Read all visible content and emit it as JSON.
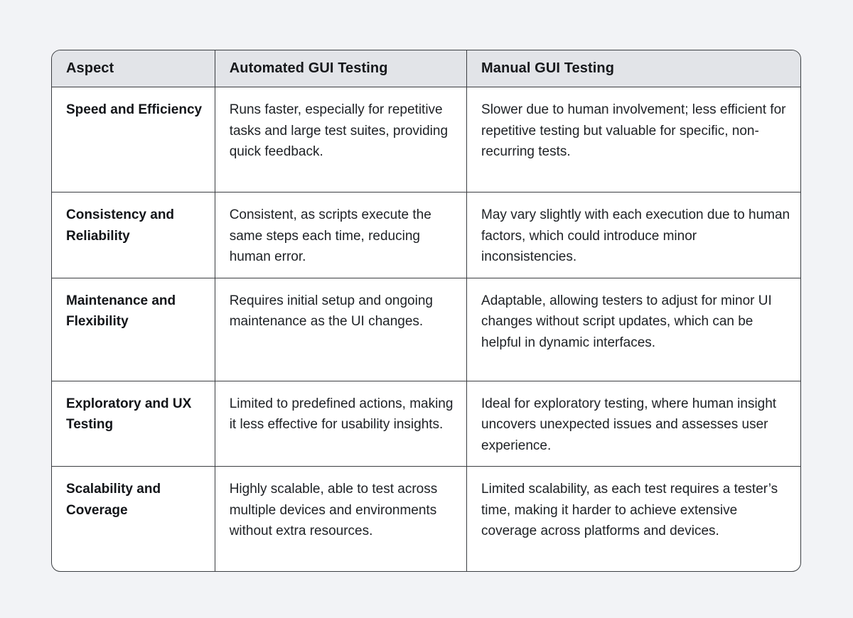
{
  "page": {
    "background_color": "#f2f3f6",
    "table_border_color": "#3b3e42",
    "header_background_color": "#e2e4e8"
  },
  "table": {
    "header": {
      "columns": [
        "Aspect",
        "Automated GUI Testing",
        "Manual GUI Testing"
      ]
    },
    "rows": [
      {
        "aspect": "Speed and Efficiency",
        "automated": "Runs faster, especially for repetitive tasks and large test suites, providing quick feedback.",
        "manual": "Slower due to human involvement; less efficient for repetitive testing but valuable for specific, non-recurring tests."
      },
      {
        "aspect": "Consistency and Reliability",
        "automated": "Consistent, as scripts execute the same steps each time, reducing human error.",
        "manual": "May vary slightly with each execution due to human factors, which could introduce minor inconsistencies."
      },
      {
        "aspect": "Maintenance and Flexibility",
        "automated": "Requires initial setup and ongoing maintenance as the UI changes.",
        "manual": "Adaptable, allowing testers to adjust for minor UI changes without script updates, which can be helpful in dynamic interfaces."
      },
      {
        "aspect": "Exploratory and UX Testing",
        "automated": "Limited to predefined actions, making it less effective for usability insights.",
        "manual": "Ideal for exploratory testing, where human insight uncovers unexpected issues and assesses user experience."
      },
      {
        "aspect": "Scalability and Coverage",
        "automated": "Highly scalable, able to test across multiple devices and environments without extra resources.",
        "manual": "Limited scalability, as each test requires a tester’s time, making it harder to achieve extensive coverage across platforms and devices."
      }
    ]
  }
}
